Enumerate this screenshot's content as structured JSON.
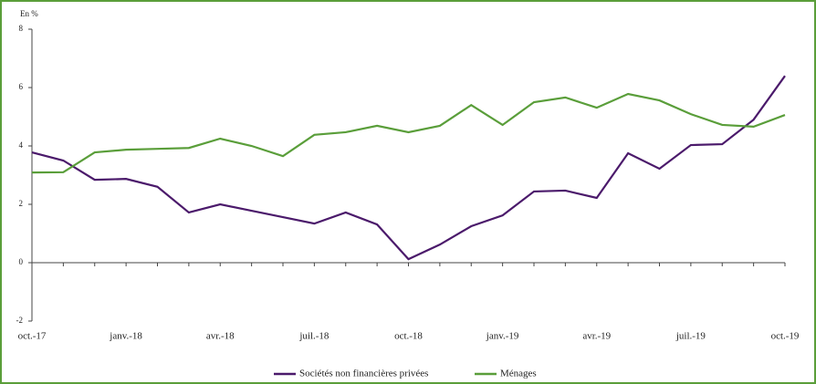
{
  "chart_data": {
    "type": "line",
    "ylabel": "En %",
    "categories": [
      "oct.-17",
      null,
      null,
      "janv.-18",
      null,
      null,
      "avr.-18",
      null,
      null,
      "juil.-18",
      null,
      null,
      "oct.-18",
      null,
      null,
      "janv.-19",
      null,
      null,
      "avr.-19",
      null,
      null,
      "juil.-19",
      null,
      null,
      "oct.-19"
    ],
    "series": [
      {
        "name": "Sociétés non financières privées",
        "color": "#4b1a6b",
        "values": [
          3.78,
          3.5,
          2.84,
          2.87,
          2.6,
          1.72,
          2.0,
          1.78,
          1.56,
          1.34,
          1.72,
          1.31,
          0.12,
          0.62,
          1.25,
          1.62,
          2.44,
          2.47,
          2.22,
          3.75,
          3.22,
          4.03,
          4.06,
          4.9,
          6.4
        ]
      },
      {
        "name": "Ménages",
        "color": "#5a9e3a",
        "values": [
          3.09,
          3.1,
          3.78,
          3.87,
          3.9,
          3.93,
          4.25,
          4.0,
          3.65,
          4.38,
          4.47,
          4.69,
          4.47,
          4.69,
          5.4,
          4.72,
          5.5,
          5.66,
          5.31,
          5.78,
          5.56,
          5.09,
          4.72,
          4.66,
          5.06
        ]
      }
    ],
    "ylim": [
      -2,
      8
    ],
    "yticks": [
      -2,
      0,
      2,
      4,
      6,
      8
    ],
    "legend": "bottom"
  }
}
